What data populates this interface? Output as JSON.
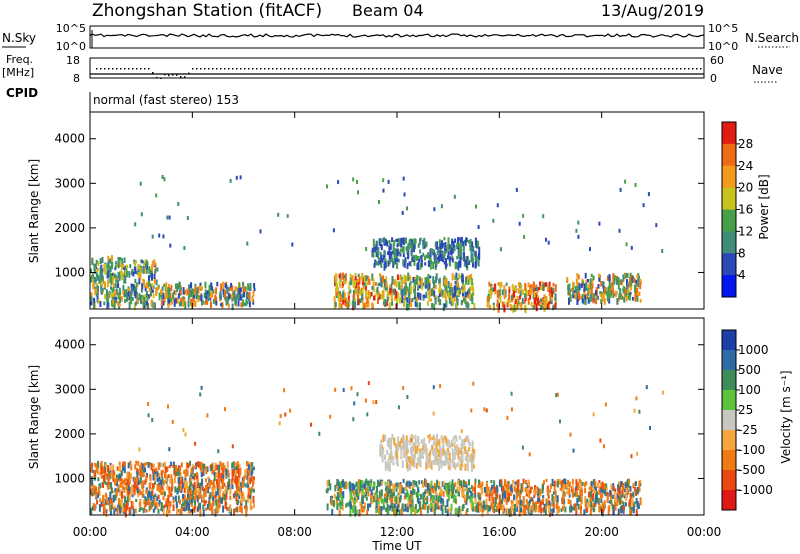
{
  "header": {
    "station": "Zhongshan Station (fitACF)",
    "beam": "Beam 04",
    "date": "13/Aug/2019"
  },
  "nsky_panel": {
    "left_label": "N.Sky",
    "left_ticks": [
      "10^5",
      "10^0"
    ],
    "right_ticks": [
      "10^5",
      "10^0"
    ],
    "right_label": "N.Search"
  },
  "freq_panel": {
    "label_line1": "Freq.",
    "label_line2": "[MHz]",
    "left_ticks": [
      "18",
      "8"
    ],
    "right_ticks": [
      "60",
      "0"
    ],
    "right_label": "Nave",
    "cpid_label": "CPID",
    "mode_text": "normal (fast stereo) 153"
  },
  "chart_data": [
    {
      "type": "heatmap",
      "name": "power",
      "ylabel": "Slant Range [km]",
      "yticks": [
        "1000",
        "2000",
        "3000",
        "4000"
      ],
      "ylim": [
        180,
        4600
      ],
      "xlim": [
        0,
        24
      ],
      "colorbar_label": "Power [dB]",
      "colorbar_ticks": [
        "4",
        "8",
        "12",
        "16",
        "20",
        "24",
        "28"
      ],
      "colorbar_colors": [
        "#0018f0",
        "#2b47b8",
        "#3f8c77",
        "#48a046",
        "#c8c41e",
        "#f39a1b",
        "#ef6a14",
        "#e21c12"
      ],
      "echo_regions": [
        {
          "t": [
            0.0,
            1.4
          ],
          "r": [
            300,
            1400
          ],
          "level": "mid"
        },
        {
          "t": [
            1.4,
            2.6
          ],
          "r": [
            300,
            1300
          ],
          "level": "mid"
        },
        {
          "t": [
            2.6,
            6.4
          ],
          "r": [
            300,
            800
          ],
          "level": "mixed"
        },
        {
          "t": [
            9.5,
            12.0
          ],
          "r": [
            300,
            1000
          ],
          "level": "high"
        },
        {
          "t": [
            11.0,
            15.2
          ],
          "r": [
            1200,
            1800
          ],
          "level": "low"
        },
        {
          "t": [
            12.0,
            15.0
          ],
          "r": [
            300,
            1000
          ],
          "level": "mid"
        },
        {
          "t": [
            15.5,
            18.2
          ],
          "r": [
            250,
            800
          ],
          "level": "high"
        },
        {
          "t": [
            18.6,
            21.5
          ],
          "r": [
            400,
            1000
          ],
          "level": "mixed"
        }
      ]
    },
    {
      "type": "heatmap",
      "name": "velocity",
      "ylabel": "Slant Range [km]",
      "yticks": [
        "1000",
        "2000",
        "3000",
        "4000"
      ],
      "ylim": [
        180,
        4600
      ],
      "xlim": [
        0,
        24
      ],
      "xticks": [
        "00:00",
        "04:00",
        "08:00",
        "12:00",
        "16:00",
        "20:00",
        "00:00"
      ],
      "xlabel": "Time UT",
      "colorbar_label": "Velocity [m s⁻¹]",
      "colorbar_ticks": [
        "1000",
        "500",
        "100",
        "25",
        "-25",
        "-100",
        "-500",
        "-1000"
      ],
      "colorbar_colors": [
        "#1c3fa7",
        "#2e6aa5",
        "#3f8c5a",
        "#5cc33a",
        "#c8c8c0",
        "#f5a63c",
        "#f07a14",
        "#ea4a10",
        "#e01818"
      ],
      "echo_regions": [
        {
          "t": [
            0.0,
            6.4
          ],
          "r": [
            300,
            1400
          ],
          "level": "neg"
        },
        {
          "t": [
            9.2,
            15.0
          ],
          "r": [
            300,
            1000
          ],
          "level": "pos"
        },
        {
          "t": [
            11.3,
            15.0
          ],
          "r": [
            1300,
            2000
          ],
          "level": "zero"
        },
        {
          "t": [
            15.0,
            21.5
          ],
          "r": [
            300,
            1000
          ],
          "level": "neg"
        }
      ]
    }
  ]
}
